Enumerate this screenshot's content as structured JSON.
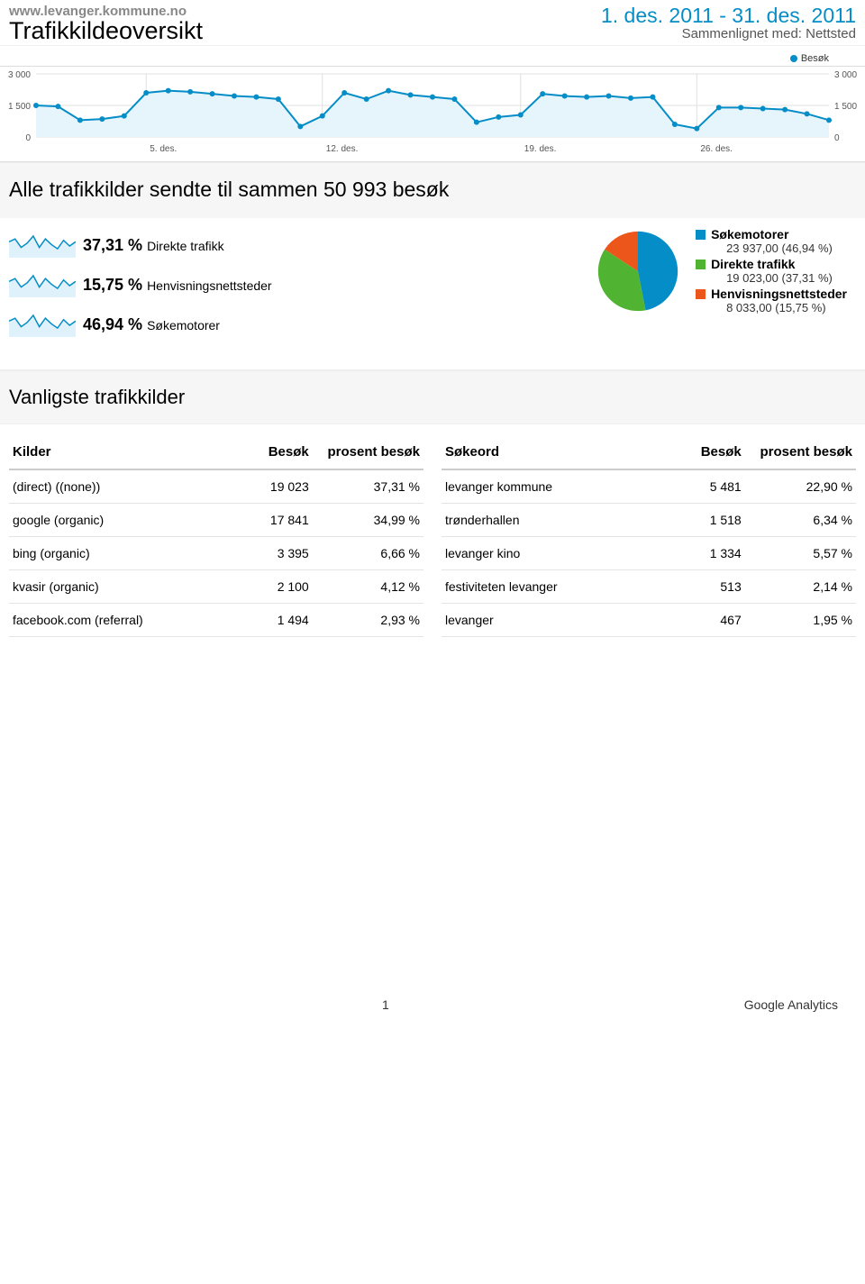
{
  "header": {
    "site": "www.levanger.kommune.no",
    "title": "Trafikkildeoversikt",
    "daterange": "1. des. 2011 - 31. des. 2011",
    "compare": "Sammenlignet med: Nettsted"
  },
  "legend_top": {
    "label": "Besøk",
    "color": "#058dc7"
  },
  "line_chart": {
    "type": "line",
    "y_ticks_left": [
      "3 000",
      "1 500",
      "0"
    ],
    "y_ticks_right": [
      "3 000",
      "1 500",
      "0"
    ],
    "x_ticks": [
      "5. des.",
      "12. des.",
      "19. des.",
      "26. des."
    ],
    "ylim": [
      0,
      3000
    ],
    "values": [
      1500,
      1450,
      800,
      850,
      1000,
      2100,
      2200,
      2150,
      2050,
      1950,
      1900,
      1800,
      500,
      1000,
      2100,
      1800,
      2200,
      2000,
      1900,
      1800,
      700,
      950,
      1050,
      2050,
      1950,
      1900,
      1950,
      1850,
      1900,
      600,
      400,
      1400,
      1400,
      1350,
      1300,
      1100,
      800
    ],
    "line_color": "#058dc7",
    "marker_color": "#058dc7",
    "fill_color": "#e6f4fb",
    "grid_color": "#e0e0e0",
    "background_color": "#ffffff",
    "marker_radius": 3,
    "line_width": 2,
    "tick_fontsize": 10,
    "tick_color": "#555"
  },
  "summary_line": "Alle trafikkilder sendte til sammen 50 993 besøk",
  "breakdown": {
    "rows": [
      {
        "pct": "37,31 %",
        "label": "Direkte trafikk"
      },
      {
        "pct": "15,75 %",
        "label": "Henvisningsnettsteder"
      },
      {
        "pct": "46,94 %",
        "label": "Søkemotorer"
      }
    ],
    "spark": {
      "color": "#058dc7",
      "fill": "#dff1fb",
      "values": [
        10,
        12,
        6,
        9,
        14,
        6,
        12,
        8,
        5,
        11,
        7,
        10
      ]
    },
    "pie": {
      "type": "pie",
      "slices": [
        {
          "label": "Søkemotorer",
          "value": 46.94,
          "color": "#058dc7",
          "legend_val": "23 937,00 (46,94 %)"
        },
        {
          "label": "Direkte trafikk",
          "value": 37.31,
          "color": "#50b432",
          "legend_val": "19 023,00 (37,31 %)"
        },
        {
          "label": "Henvisningsnettsteder",
          "value": 15.75,
          "color": "#ed561b",
          "legend_val": "8 033,00 (15,75 %)"
        }
      ]
    }
  },
  "section_title": "Vanligste trafikkilder",
  "table_left": {
    "headers": [
      "Kilder",
      "Besøk",
      "prosent besøk"
    ],
    "rows": [
      [
        "(direct) ((none))",
        "19 023",
        "37,31 %"
      ],
      [
        "google (organic)",
        "17 841",
        "34,99 %"
      ],
      [
        "bing (organic)",
        "3 395",
        "6,66 %"
      ],
      [
        "kvasir (organic)",
        "2 100",
        "4,12 %"
      ],
      [
        "facebook.com (referral)",
        "1 494",
        "2,93 %"
      ]
    ]
  },
  "table_right": {
    "headers": [
      "Søkeord",
      "Besøk",
      "prosent besøk"
    ],
    "rows": [
      [
        "levanger kommune",
        "5 481",
        "22,90 %"
      ],
      [
        "trønderhallen",
        "1 518",
        "6,34 %"
      ],
      [
        "levanger kino",
        "1 334",
        "5,57 %"
      ],
      [
        "festiviteten levanger",
        "513",
        "2,14 %"
      ],
      [
        "levanger",
        "467",
        "1,95 %"
      ]
    ]
  },
  "footer": {
    "page": "1",
    "brand": "Google Analytics"
  }
}
